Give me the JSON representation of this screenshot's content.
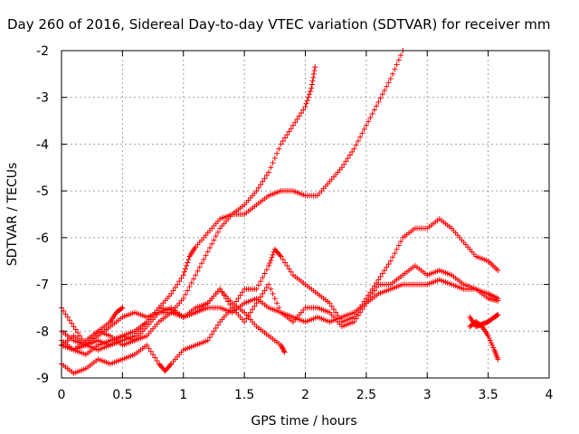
{
  "chart_data": {
    "type": "scatter",
    "title": "Day 260 of 2016, Sidereal Day-to-day VTEC variation (SDTVAR) for receiver mm",
    "xlabel": "GPS time / hours",
    "ylabel": "SDTVAR / TECUs",
    "xlim": [
      0,
      4
    ],
    "ylim": [
      -9,
      -2
    ],
    "xticks": [
      "0",
      "0.5",
      "1",
      "1.5",
      "2",
      "2.5",
      "3",
      "3.5",
      "4"
    ],
    "yticks": [
      "-2",
      "-3",
      "-4",
      "-5",
      "-6",
      "-7",
      "-8",
      "-9"
    ],
    "grid": true,
    "marker": "+",
    "color": "#ff0000",
    "series": [
      {
        "x": [
          0.0,
          0.1,
          0.2,
          0.3,
          0.4,
          0.5,
          0.6,
          0.7,
          0.8,
          0.9,
          1.0,
          1.05,
          1.1,
          1.2,
          1.3,
          1.4,
          1.5,
          1.6,
          1.7,
          1.8,
          1.9,
          2.0,
          2.05,
          2.08
        ],
        "y": [
          -8.3,
          -8.1,
          -8.3,
          -8.2,
          -8.3,
          -8.2,
          -8.1,
          -7.8,
          -7.5,
          -7.2,
          -6.8,
          -6.4,
          -6.2,
          -5.9,
          -5.6,
          -5.5,
          -5.3,
          -5.0,
          -4.6,
          -4.0,
          -3.6,
          -3.2,
          -2.8,
          -2.35
        ]
      },
      {
        "x": [
          0.0,
          0.1,
          0.2,
          0.3,
          0.4,
          0.5,
          0.6,
          0.7,
          0.8,
          0.9,
          1.0,
          1.1,
          1.2,
          1.3,
          1.4,
          1.5,
          1.6,
          1.7,
          1.8,
          1.9,
          2.0,
          2.1,
          2.2,
          2.3,
          2.4,
          2.5,
          2.6,
          2.7,
          2.8
        ],
        "y": [
          -7.5,
          -7.9,
          -8.3,
          -8.4,
          -8.3,
          -8.1,
          -8.2,
          -8.1,
          -7.8,
          -7.6,
          -7.3,
          -6.8,
          -6.3,
          -5.8,
          -5.5,
          -5.5,
          -5.3,
          -5.1,
          -5.0,
          -5.0,
          -5.1,
          -5.1,
          -4.8,
          -4.5,
          -4.1,
          -3.6,
          -3.1,
          -2.6,
          -2.0
        ]
      },
      {
        "x": [
          0.0,
          0.1,
          0.2,
          0.3,
          0.4,
          0.5,
          0.6,
          0.7,
          0.8,
          0.85,
          0.9,
          1.0,
          1.1,
          1.2,
          1.3,
          1.4,
          1.5,
          1.6,
          1.7,
          1.75,
          1.8,
          1.9,
          2.0,
          2.1,
          2.2,
          2.3,
          2.4,
          2.5,
          2.6,
          2.7,
          2.8,
          2.9,
          3.0,
          3.1,
          3.2,
          3.3,
          3.4,
          3.5,
          3.58
        ],
        "y": [
          -8.7,
          -8.9,
          -8.8,
          -8.6,
          -8.7,
          -8.6,
          -8.5,
          -8.3,
          -8.7,
          -8.85,
          -8.7,
          -8.4,
          -8.3,
          -8.2,
          -7.8,
          -7.5,
          -7.1,
          -7.1,
          -6.6,
          -6.25,
          -6.4,
          -6.8,
          -7.0,
          -7.2,
          -7.4,
          -7.8,
          -7.7,
          -7.3,
          -6.9,
          -6.5,
          -6.0,
          -5.8,
          -5.8,
          -5.6,
          -5.8,
          -6.1,
          -6.4,
          -6.5,
          -6.7
        ]
      },
      {
        "x": [
          0.0,
          0.1,
          0.2,
          0.3,
          0.4,
          0.5,
          0.6,
          0.7,
          0.8,
          0.9,
          1.0,
          1.1,
          1.2,
          1.3,
          1.4,
          1.5,
          1.6,
          1.7,
          1.8,
          1.9,
          2.0,
          2.1,
          2.2,
          2.3,
          2.4,
          2.5,
          2.6,
          2.7,
          2.8,
          2.9,
          3.0,
          3.1,
          3.2,
          3.3,
          3.4,
          3.5,
          3.58
        ],
        "y": [
          -8.2,
          -8.4,
          -8.3,
          -8.0,
          -8.1,
          -8.3,
          -8.2,
          -7.9,
          -7.6,
          -7.6,
          -7.7,
          -7.5,
          -7.4,
          -7.1,
          -7.5,
          -7.8,
          -7.4,
          -7.0,
          -7.6,
          -7.8,
          -7.5,
          -7.5,
          -7.6,
          -7.9,
          -7.8,
          -7.4,
          -7.0,
          -7.0,
          -6.8,
          -6.6,
          -6.8,
          -6.7,
          -6.8,
          -7.0,
          -7.1,
          -7.3,
          -7.35
        ]
      },
      {
        "x": [
          0.0,
          0.1,
          0.2,
          0.3,
          0.4,
          0.5,
          0.6,
          0.7,
          0.8,
          0.9,
          1.0,
          1.1,
          1.2,
          1.3,
          1.4,
          1.5,
          1.6,
          1.7,
          1.8,
          1.83
        ],
        "y": [
          -8.3,
          -8.4,
          -8.5,
          -8.3,
          -8.2,
          -8.1,
          -8.0,
          -7.8,
          -7.5,
          -7.55,
          -7.7,
          -7.6,
          -7.4,
          -7.1,
          -7.4,
          -7.6,
          -7.9,
          -8.1,
          -8.3,
          -8.45
        ]
      },
      {
        "x": [
          0.0,
          0.1,
          0.2,
          0.3,
          0.4,
          0.5,
          0.6,
          0.7,
          0.8,
          0.9,
          1.0,
          1.1,
          1.2,
          1.3,
          1.4,
          1.5,
          1.6,
          1.7,
          1.8,
          1.9,
          2.0,
          2.1,
          2.2,
          2.3,
          2.4,
          2.5,
          2.6,
          2.7,
          2.8,
          2.9,
          3.0,
          3.1,
          3.2,
          3.3,
          3.4,
          3.5,
          3.58
        ],
        "y": [
          -8.0,
          -8.2,
          -8.3,
          -8.1,
          -7.9,
          -7.7,
          -7.6,
          -7.7,
          -7.6,
          -7.5,
          -7.7,
          -7.6,
          -7.5,
          -7.5,
          -7.6,
          -7.4,
          -7.3,
          -7.5,
          -7.6,
          -7.7,
          -7.8,
          -7.7,
          -7.8,
          -7.7,
          -7.6,
          -7.4,
          -7.2,
          -7.1,
          -7.0,
          -7.0,
          -7.0,
          -6.9,
          -7.0,
          -7.1,
          -7.1,
          -7.2,
          -7.3
        ]
      },
      {
        "x": [
          0.0,
          0.1,
          0.2,
          0.3,
          0.4,
          0.45,
          0.5
        ],
        "y": [
          -8.3,
          -8.4,
          -8.2,
          -8.0,
          -7.8,
          -7.6,
          -7.5
        ]
      },
      {
        "x": [
          3.35,
          3.4,
          3.45,
          3.5,
          3.55,
          3.58
        ],
        "y": [
          -7.9,
          -7.8,
          -7.9,
          -8.1,
          -8.4,
          -8.6
        ]
      },
      {
        "x": [
          3.35,
          3.4,
          3.45,
          3.5,
          3.55,
          3.58
        ],
        "y": [
          -7.7,
          -7.9,
          -7.85,
          -7.8,
          -7.7,
          -7.65
        ]
      }
    ]
  }
}
